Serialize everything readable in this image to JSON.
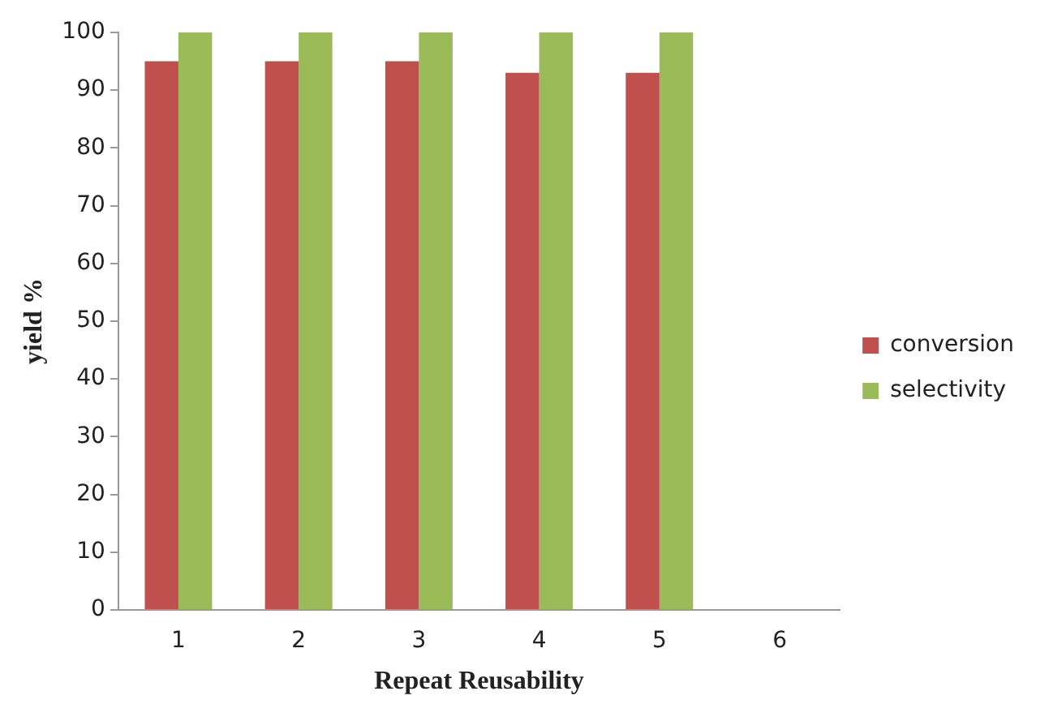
{
  "chart_data": {
    "type": "bar",
    "xlabel": "Repeat Reusability",
    "ylabel": "yield %",
    "categories": [
      "1",
      "2",
      "3",
      "4",
      "5",
      "6"
    ],
    "series": [
      {
        "name": "conversion",
        "color": "#c0504d",
        "values": [
          95,
          95,
          95,
          93,
          93,
          null
        ]
      },
      {
        "name": "selectivity",
        "color": "#9bbb59",
        "values": [
          100,
          100,
          100,
          100,
          100,
          null
        ]
      }
    ],
    "ylim": [
      0,
      100
    ],
    "yticks": [
      0,
      10,
      20,
      30,
      40,
      50,
      60,
      70,
      80,
      90,
      100
    ],
    "grid": false,
    "legend": "right"
  }
}
